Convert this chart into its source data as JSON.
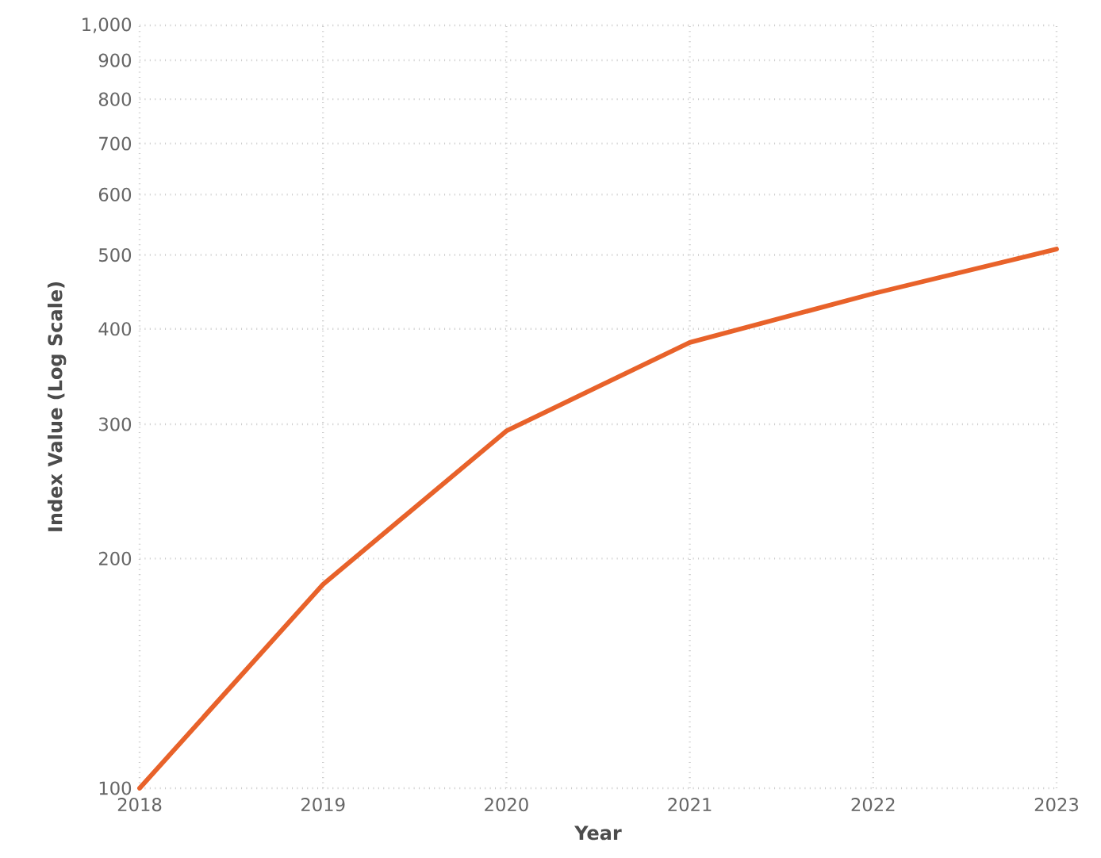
{
  "chart_data": {
    "type": "line",
    "xlabel": "Year",
    "ylabel": "Index Value (Log Scale)",
    "x": [
      2018,
      2019,
      2020,
      2021,
      2022,
      2023
    ],
    "series": [
      {
        "color": "#e8622a",
        "values": [
          100,
          185,
          294,
          384,
          445,
          509
        ]
      }
    ],
    "xlim": [
      2018,
      2023
    ],
    "xticks": [
      2018,
      2019,
      2020,
      2021,
      2022,
      2023
    ],
    "ylim": [
      100,
      1000
    ],
    "yticks": [
      100,
      200,
      300,
      400,
      500,
      600,
      700,
      800,
      900,
      {
        "value": 1000,
        "label": "1,000"
      }
    ],
    "log": true,
    "grid": true,
    "line_style": "solid"
  }
}
